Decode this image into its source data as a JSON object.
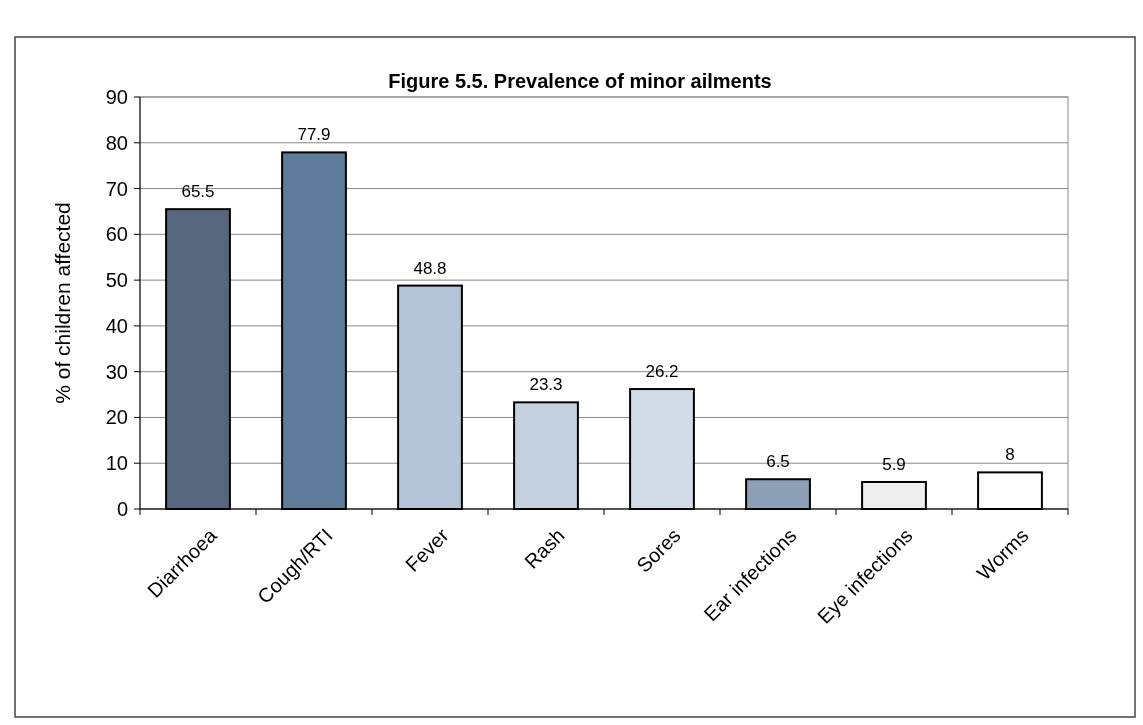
{
  "chart_data": {
    "type": "bar",
    "title": "Figure 5.5. Prevalence of minor ailments",
    "ylabel": "% of children affected",
    "categories": [
      "Diarrhoea",
      "Cough/RTI",
      "Fever",
      "Rash",
      "Sores",
      "Ear infections",
      "Eye infections",
      "Worms"
    ],
    "values": [
      65.5,
      77.9,
      48.8,
      23.3,
      26.2,
      6.5,
      5.9,
      8
    ],
    "colors": [
      "#56677d",
      "#5e7c9a",
      "#b4c4d8",
      "#c4d0de",
      "#d2dce8",
      "#8c9fb4",
      "#eeeeee",
      "#ffffff"
    ],
    "ylim": [
      0,
      90
    ],
    "yticks": [
      0,
      10,
      20,
      30,
      40,
      50,
      60,
      70,
      80,
      90
    ],
    "grid": "y",
    "data_labels": true
  }
}
